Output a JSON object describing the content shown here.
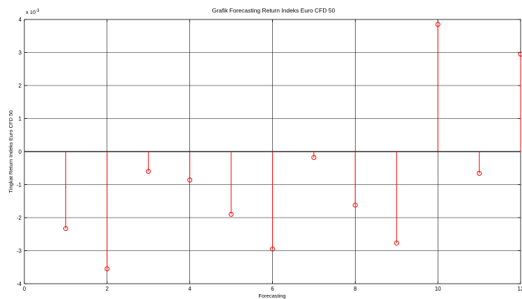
{
  "chart_data": {
    "type": "stem",
    "title": "Grafik Forecasting Return Indeks Euro CFD 50",
    "xlabel": "Forecasting",
    "ylabel": "Tingkat Return Indeks Euro CFD 50",
    "y_multiplier_label": "x 10",
    "y_multiplier_exponent": "-3",
    "xlim": [
      0,
      12
    ],
    "ylim": [
      -4,
      4
    ],
    "x_ticks": [
      "0",
      "2",
      "4",
      "6",
      "8",
      "10",
      "12"
    ],
    "y_ticks": [
      "-4",
      "-3",
      "-2",
      "-1",
      "0",
      "1",
      "2",
      "3",
      "4"
    ],
    "grid": true,
    "color": "#ff0000",
    "x": [
      1,
      2,
      3,
      4,
      5,
      6,
      7,
      8,
      9,
      10,
      11,
      12
    ],
    "values": [
      -2.33,
      -3.55,
      -0.6,
      -0.86,
      -1.9,
      -2.95,
      -0.18,
      -1.62,
      -2.77,
      3.85,
      -0.66,
      2.95
    ]
  }
}
